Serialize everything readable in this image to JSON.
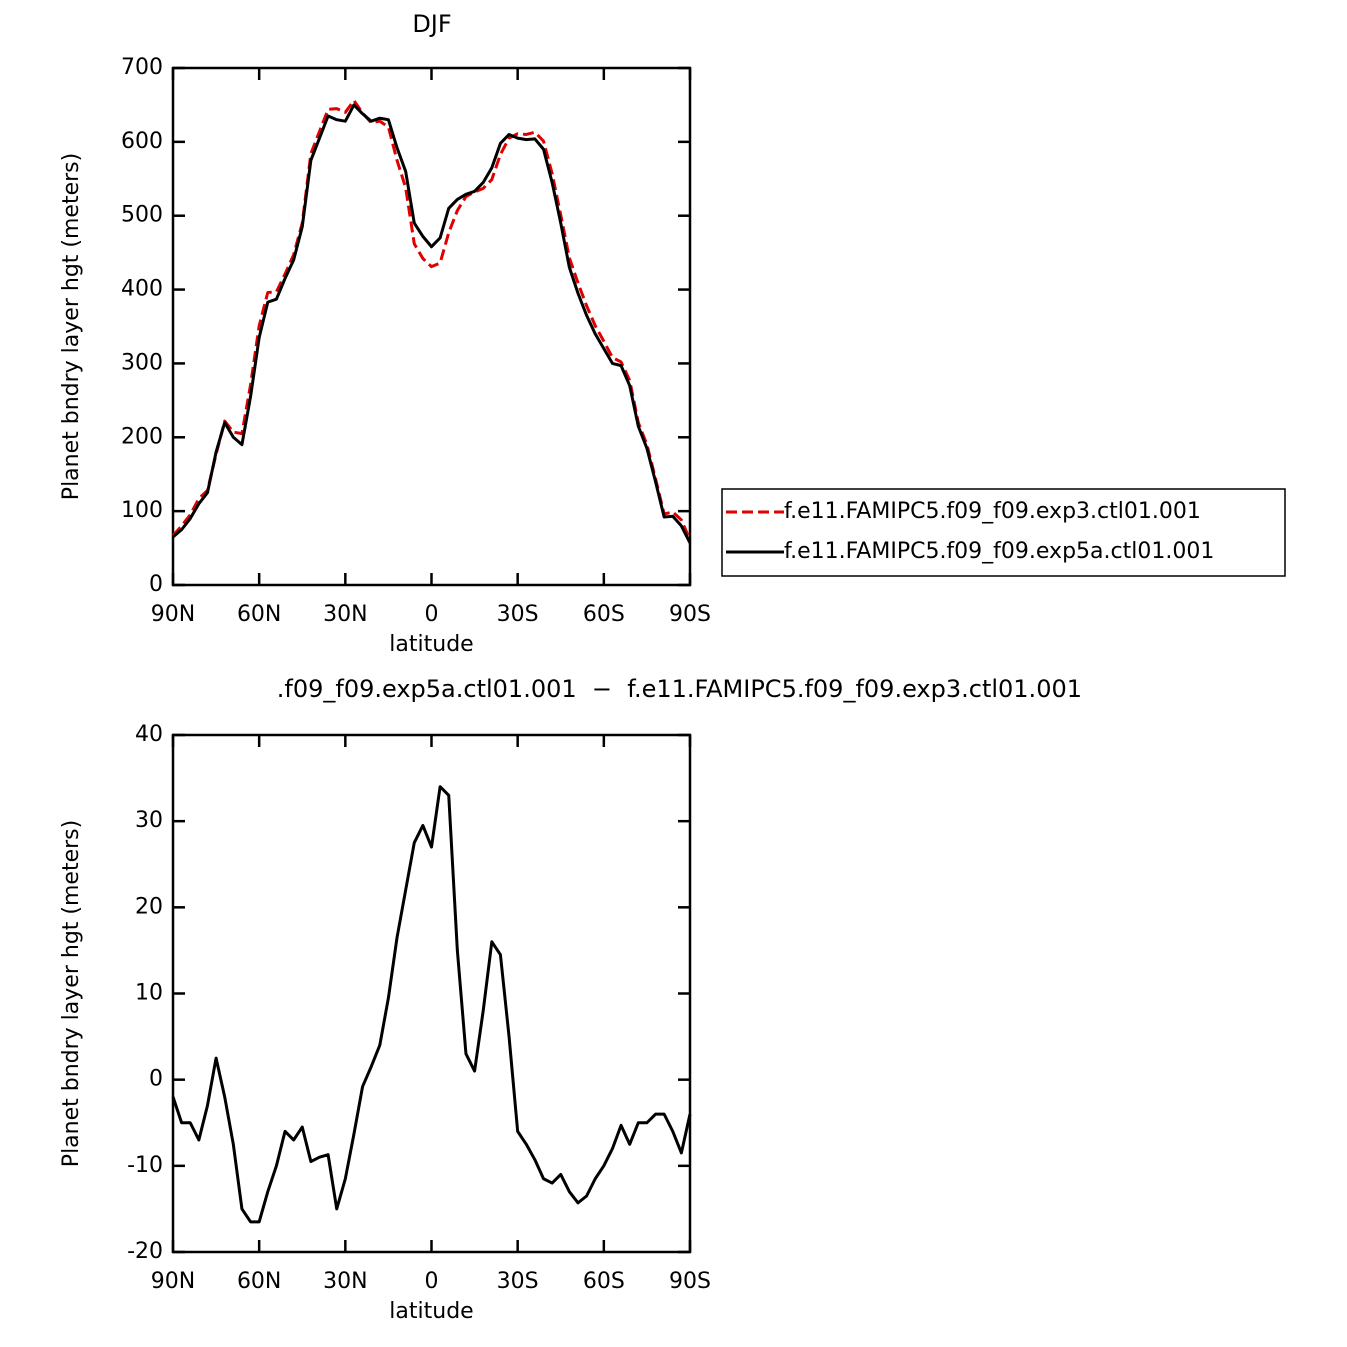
{
  "chart_data": [
    {
      "type": "line",
      "title": "DJF",
      "x_label": "latitude",
      "y_label": "Planet bndry layer hgt (meters)",
      "x": [
        90,
        87,
        84,
        81,
        78,
        75,
        72,
        69,
        66,
        63,
        60,
        57,
        54,
        51,
        48,
        45,
        42,
        39,
        36,
        33,
        30,
        27,
        24,
        21,
        18,
        15,
        12,
        9,
        6,
        3,
        0,
        -3,
        -6,
        -9,
        -12,
        -15,
        -18,
        -21,
        -24,
        -27,
        -30,
        -33,
        -36,
        -39,
        -42,
        -45,
        -48,
        -51,
        -54,
        -57,
        -60,
        -63,
        -66,
        -69,
        -72,
        -75,
        -78,
        -81,
        -84,
        -87,
        -90
      ],
      "series": [
        {
          "name": "f.e11.FAMIPC5.f09_f09.exp3.ctl01.001",
          "color": "#e00000",
          "line_style": "dashed",
          "values": [
            67,
            80,
            95,
            117,
            128,
            177,
            222,
            207,
            205,
            271,
            351,
            396,
            397,
            421,
            447,
            490,
            584,
            614,
            644,
            645,
            640,
            656,
            639,
            626,
            628,
            620,
            575,
            538,
            462,
            442,
            431,
            436,
            477,
            507,
            526,
            532,
            537,
            549,
            583,
            605,
            611,
            610,
            613,
            601,
            557,
            501,
            443,
            409,
            378,
            351,
            330,
            308,
            302,
            277,
            220,
            190,
            144,
            96,
            99,
            88,
            61
          ]
        },
        {
          "name": "f.e11.FAMIPC5.f09_f09.exp5a.ctl01.001",
          "color": "#000000",
          "line_style": "solid",
          "values": [
            65,
            75,
            90,
            110,
            125,
            180,
            220,
            200,
            190,
            255,
            335,
            383,
            387,
            415,
            440,
            485,
            575,
            605,
            635,
            630,
            628,
            650,
            638,
            628,
            632,
            630,
            592,
            560,
            490,
            472,
            458,
            470,
            510,
            522,
            529,
            533,
            545,
            565,
            598,
            610,
            605,
            603,
            604,
            590,
            545,
            490,
            430,
            395,
            365,
            340,
            320,
            300,
            297,
            270,
            215,
            185,
            140,
            92,
            93,
            80,
            57
          ]
        }
      ],
      "xlim": [
        90,
        -90
      ],
      "xticks": [
        {
          "value": 90,
          "label": "90N"
        },
        {
          "value": 60,
          "label": "60N"
        },
        {
          "value": 30,
          "label": "30N"
        },
        0,
        {
          "value": -30,
          "label": "30S"
        },
        {
          "value": -60,
          "label": "60S"
        },
        {
          "value": -90,
          "label": "90S"
        }
      ],
      "ylim": [
        0,
        700
      ],
      "yticks": [
        0,
        100,
        200,
        300,
        400,
        500,
        600,
        700
      ],
      "legend": "right"
    },
    {
      "type": "line",
      "title": ".f09_f09.exp5a.ctl01.001  −  f.e11.FAMIPC5.f09_f09.exp3.ctl01.001",
      "x_label": "latitude",
      "y_label": "Planet bndry layer hgt (meters)",
      "x": [
        90,
        87,
        84,
        81,
        78,
        75,
        72,
        69,
        66,
        63,
        60,
        57,
        54,
        51,
        48,
        45,
        42,
        39,
        36,
        33,
        30,
        27,
        24,
        21,
        18,
        15,
        12,
        9,
        6,
        3,
        0,
        -3,
        -6,
        -9,
        -12,
        -15,
        -18,
        -21,
        -24,
        -27,
        -30,
        -33,
        -36,
        -39,
        -42,
        -45,
        -48,
        -51,
        -54,
        -57,
        -60,
        -63,
        -66,
        -69,
        -72,
        -75,
        -78,
        -81,
        -84,
        -87,
        -90
      ],
      "values": [
        -2,
        -5,
        -5,
        -7,
        -3,
        2.5,
        -2,
        -7.5,
        -15,
        -16.5,
        -16.5,
        -13,
        -10,
        -6,
        -7,
        -5.5,
        -9.5,
        -9,
        -8.7,
        -15,
        -11.5,
        -6.3,
        -0.8,
        1.5,
        4,
        9.5,
        16.5,
        22,
        27.5,
        29.5,
        27,
        34,
        33,
        15,
        3,
        1,
        8,
        16,
        14.5,
        5,
        -6,
        -7.5,
        -9.3,
        -11.5,
        -12,
        -11,
        -13,
        -14.3,
        -13.5,
        -11.5,
        -10,
        -8,
        -5.3,
        -7.5,
        -5,
        -5,
        -4,
        -4,
        -6,
        -8.5,
        -4
      ],
      "color": "#000000",
      "xlim": [
        90,
        -90
      ],
      "xticks": [
        {
          "value": 90,
          "label": "90N"
        },
        {
          "value": 60,
          "label": "60N"
        },
        {
          "value": 30,
          "label": "30N"
        },
        0,
        {
          "value": -30,
          "label": "30S"
        },
        {
          "value": -60,
          "label": "60S"
        },
        {
          "value": -90,
          "label": "90S"
        }
      ],
      "ylim": [
        -20,
        40
      ],
      "yticks": [
        -20,
        -10,
        0,
        10,
        20,
        30,
        40
      ]
    }
  ]
}
